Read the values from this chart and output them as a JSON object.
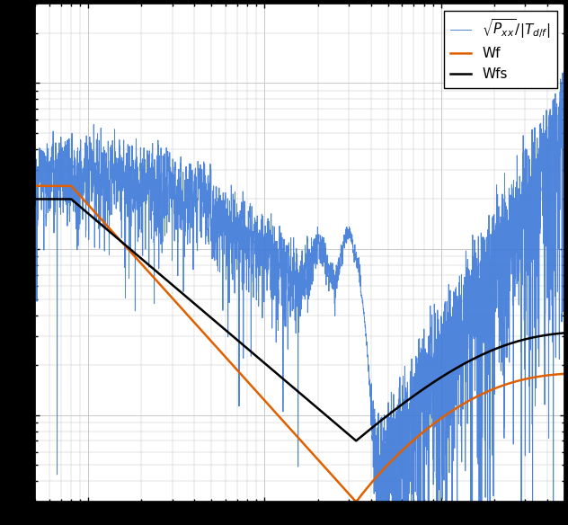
{
  "xlim": [
    0.5,
    500
  ],
  "ylim": [
    0.003,
    3.0
  ],
  "grid_color": "#c8c8c8",
  "bg_color": "#ffffff",
  "fig_bg": "#000000",
  "line_blue": "#3c78d8",
  "line_orange": "#e06000",
  "line_black": "#000000",
  "legend_labels": [
    "$\\sqrt{P_{xx}}/|T_{d/f}|$",
    "Wf",
    "Wfs"
  ],
  "figsize": [
    6.32,
    5.84
  ],
  "dpi": 100
}
